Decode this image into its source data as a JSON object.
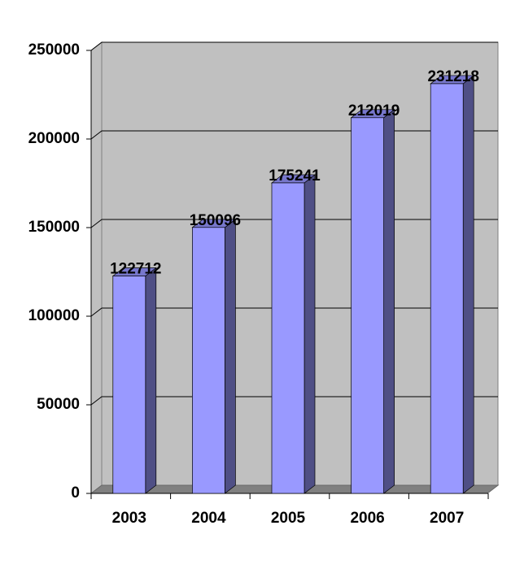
{
  "chart_data": {
    "type": "bar3d",
    "categories": [
      "2003",
      "2004",
      "2005",
      "2006",
      "2007"
    ],
    "values": [
      122712,
      150096,
      175241,
      212019,
      231218
    ],
    "color": "#9999ff",
    "ylim": [
      0,
      250000
    ],
    "yticks": [
      0,
      50000,
      100000,
      150000,
      200000,
      250000
    ],
    "grid": true
  }
}
